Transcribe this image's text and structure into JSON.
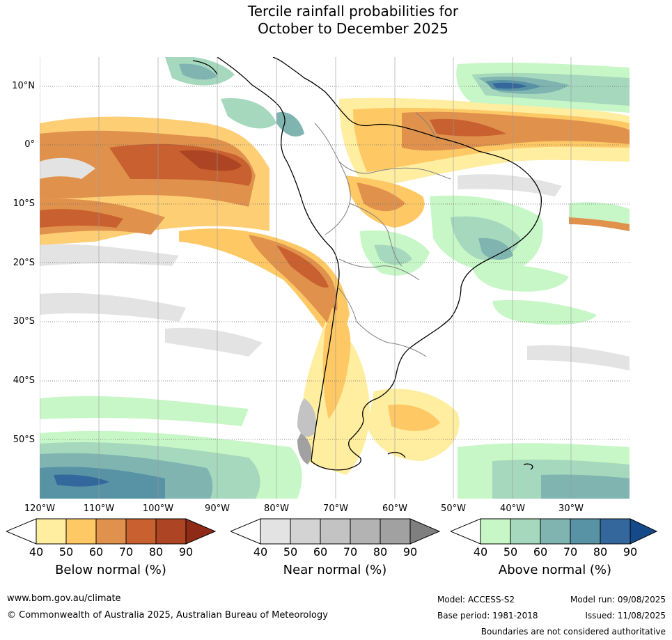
{
  "title_line1": "Tercile rainfall probabilities for",
  "title_line2": "October to December 2025",
  "map": {
    "lat_labels": [
      "10°N",
      "0°",
      "10°S",
      "20°S",
      "30°S",
      "40°S",
      "50°S"
    ],
    "lon_labels": [
      "120°W",
      "110°W",
      "100°W",
      "90°W",
      "80°W",
      "70°W",
      "60°W",
      "50°W",
      "40°W",
      "30°W"
    ],
    "palette": {
      "below": [
        "#ffeda0",
        "#fec965",
        "#e0924d",
        "#c8612f",
        "#ad4423",
        "#8f2a17"
      ],
      "near": [
        "#e3e3e3",
        "#d3d3d3",
        "#c3c3c3",
        "#b3b3b3",
        "#a1a1a1",
        "#7f7f7f"
      ],
      "above": [
        "#c7f7c7",
        "#a5d8bc",
        "#7fb4b1",
        "#5892a5",
        "#34689d",
        "#144a8a"
      ]
    }
  },
  "colorbars": [
    {
      "title": "Below normal (%)",
      "ticks": [
        "40",
        "50",
        "60",
        "70",
        "80",
        "90"
      ],
      "colors": [
        "#ffeda0",
        "#fec965",
        "#e0924d",
        "#c8612f",
        "#ad4423",
        "#8f2a17"
      ]
    },
    {
      "title": "Near normal (%)",
      "ticks": [
        "40",
        "50",
        "60",
        "70",
        "80",
        "90"
      ],
      "colors": [
        "#e3e3e3",
        "#d3d3d3",
        "#c3c3c3",
        "#b3b3b3",
        "#a1a1a1",
        "#7f7f7f"
      ]
    },
    {
      "title": "Above normal (%)",
      "ticks": [
        "40",
        "50",
        "60",
        "70",
        "80",
        "90"
      ],
      "colors": [
        "#c7f7c7",
        "#a5d8bc",
        "#7fb4b1",
        "#5892a5",
        "#34689d",
        "#144a8a"
      ]
    }
  ],
  "footer": {
    "website": "www.bom.gov.au/climate",
    "copyright": "© Commonwealth of Australia 2025, Australian Bureau of Meteorology",
    "model": "Model: ACCESS-S2",
    "base_period": "Base period: 1981-2018",
    "model_run": "Model run: 09/08/2025",
    "issued": "Issued: 11/08/2025",
    "disclaimer": "Boundaries are not considered authoritative"
  }
}
